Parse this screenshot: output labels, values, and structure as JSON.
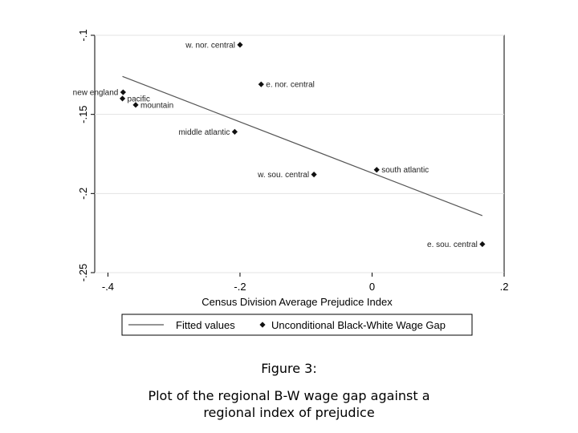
{
  "caption": {
    "figure_number": "Figure 3:",
    "line1": "Plot of the regional B-W wage gap against a",
    "line2": "regional index of prejudice"
  },
  "chart_data": {
    "type": "scatter",
    "title": "",
    "xlabel": "Census Division Average Prejudice Index",
    "ylabel": "",
    "xlim": [
      -0.42,
      0.2
    ],
    "ylim": [
      -0.25,
      -0.1
    ],
    "xticks": [
      -0.4,
      -0.2,
      0,
      0.2
    ],
    "xtick_labels": [
      "-.4",
      "-.2",
      "0",
      ".2"
    ],
    "yticks": [
      -0.1,
      -0.15,
      -0.2,
      -0.25
    ],
    "ytick_labels": [
      "-.1",
      "-.15",
      "-.2",
      "-.25"
    ],
    "grid": true,
    "legend_position": "bottom",
    "points": [
      {
        "label": "w. nor. central",
        "x": -0.2,
        "y": -0.106,
        "label_side": "left"
      },
      {
        "label": "e. nor. central",
        "x": -0.168,
        "y": -0.131,
        "label_side": "right"
      },
      {
        "label": "new england",
        "x": -0.377,
        "y": -0.136,
        "label_side": "left"
      },
      {
        "label": "pacific",
        "x": -0.378,
        "y": -0.14,
        "label_side": "right"
      },
      {
        "label": "mountain",
        "x": -0.358,
        "y": -0.144,
        "label_side": "right"
      },
      {
        "label": "middle atlantic",
        "x": -0.208,
        "y": -0.161,
        "label_side": "left"
      },
      {
        "label": "south atlantic",
        "x": 0.007,
        "y": -0.185,
        "label_side": "right"
      },
      {
        "label": "w. sou. central",
        "x": -0.088,
        "y": -0.188,
        "label_side": "left"
      },
      {
        "label": "e. sou. central",
        "x": 0.167,
        "y": -0.232,
        "label_side": "left"
      }
    ],
    "fitted_line": {
      "x": [
        -0.378,
        0.167
      ],
      "y": [
        -0.126,
        -0.214
      ]
    },
    "series": [
      {
        "name": "Fitted values",
        "kind": "line",
        "color": "#555555"
      },
      {
        "name": "Unconditional Black-White Wage Gap",
        "kind": "marker",
        "color": "#111111"
      }
    ]
  }
}
